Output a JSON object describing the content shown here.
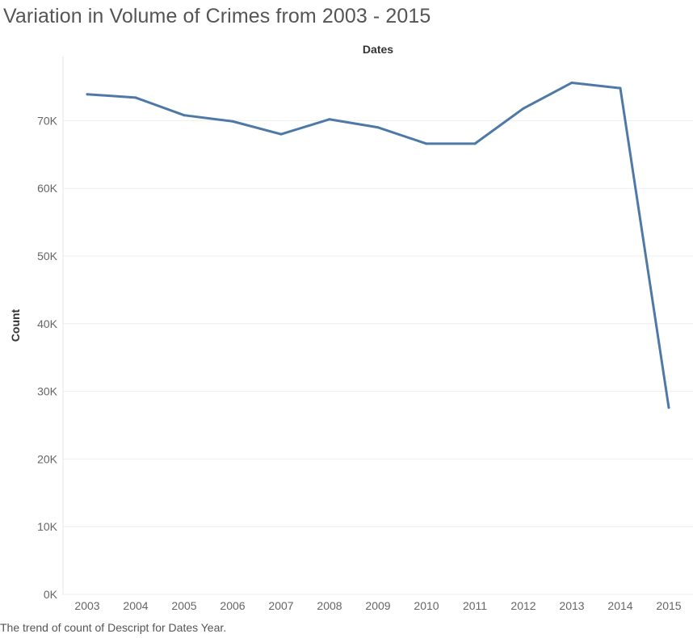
{
  "chart_data": {
    "type": "line",
    "title": "Variation in Volume of Crimes from 2003 - 2015",
    "xlabel": "Dates",
    "ylabel": "Count",
    "caption": "The trend of count of Descript for Dates Year.",
    "categories": [
      "2003",
      "2004",
      "2005",
      "2006",
      "2007",
      "2008",
      "2009",
      "2010",
      "2011",
      "2012",
      "2013",
      "2014",
      "2015"
    ],
    "values": [
      73900,
      73400,
      70800,
      69900,
      68000,
      70200,
      69000,
      66600,
      66600,
      71800,
      75600,
      74800,
      27600
    ],
    "ylim": [
      0,
      78000
    ],
    "yticks": [
      0,
      10000,
      20000,
      30000,
      40000,
      50000,
      60000,
      70000
    ],
    "ytick_labels": [
      "0K",
      "10K",
      "20K",
      "30K",
      "40K",
      "50K",
      "60K",
      "70K"
    ],
    "grid": true,
    "line_color": "#4e79a7"
  }
}
